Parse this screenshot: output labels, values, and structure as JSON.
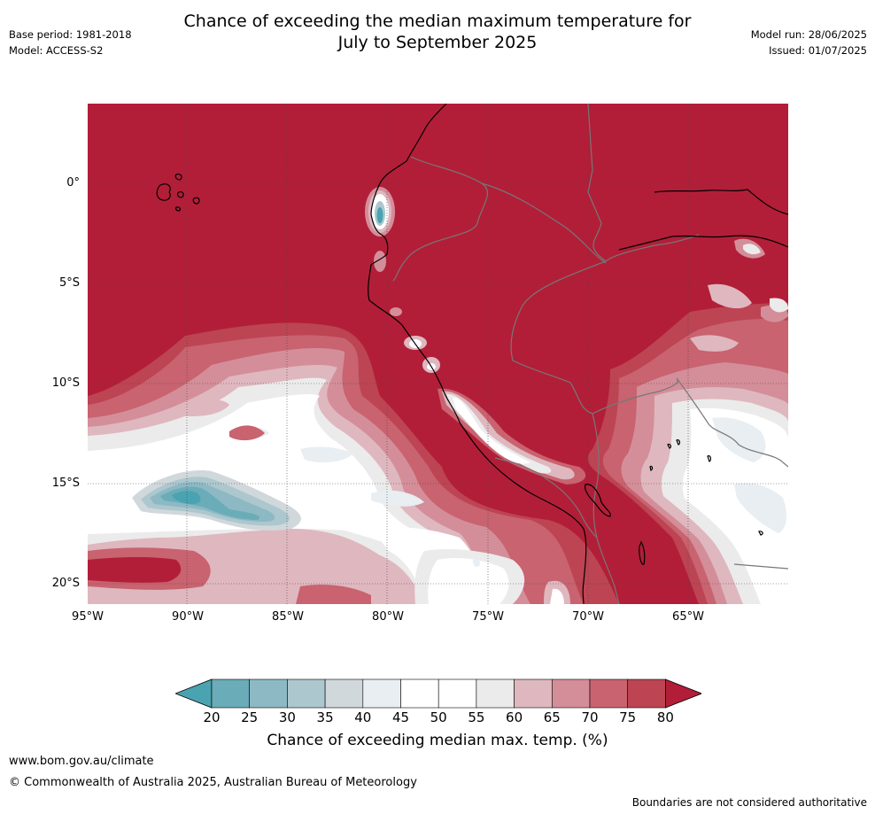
{
  "header": {
    "title_line1": "Chance of exceeding the median maximum temperature for",
    "title_line2": "July to September 2025",
    "base_period": "Base period: 1981-2018",
    "model": "Model: ACCESS-S2",
    "model_run": "Model run: 28/06/2025",
    "issued": "Issued: 01/07/2025"
  },
  "map": {
    "lat_labels": [
      "0°",
      "5°S",
      "10°S",
      "15°S",
      "20°S"
    ],
    "lon_labels": [
      "95°W",
      "90°W",
      "85°W",
      "80°W",
      "75°W",
      "70°W",
      "65°W"
    ],
    "extent": {
      "lon_min": -95,
      "lon_max": -60,
      "lat_min": -21,
      "lat_max": 4
    }
  },
  "colorbar": {
    "ticks": [
      "20",
      "25",
      "30",
      "35",
      "40",
      "45",
      "50",
      "55",
      "60",
      "65",
      "70",
      "75",
      "80"
    ],
    "title": "Chance of exceeding median max. temp. (%)",
    "colors": [
      "#4aa3b0",
      "#6aacb8",
      "#8db9c4",
      "#adc7ce",
      "#d0d8dc",
      "#e8eef1",
      "#ffffff",
      "#ffffff",
      "#ebebeb",
      "#dfb7bf",
      "#d48e99",
      "#c8636f",
      "#bd4453",
      "#b21e38"
    ]
  },
  "footer": {
    "url": "www.bom.gov.au/climate",
    "copyright": "© Commonwealth of Australia 2025, Australian Bureau of Meteorology",
    "disclaimer": "Boundaries are not considered authoritative"
  }
}
